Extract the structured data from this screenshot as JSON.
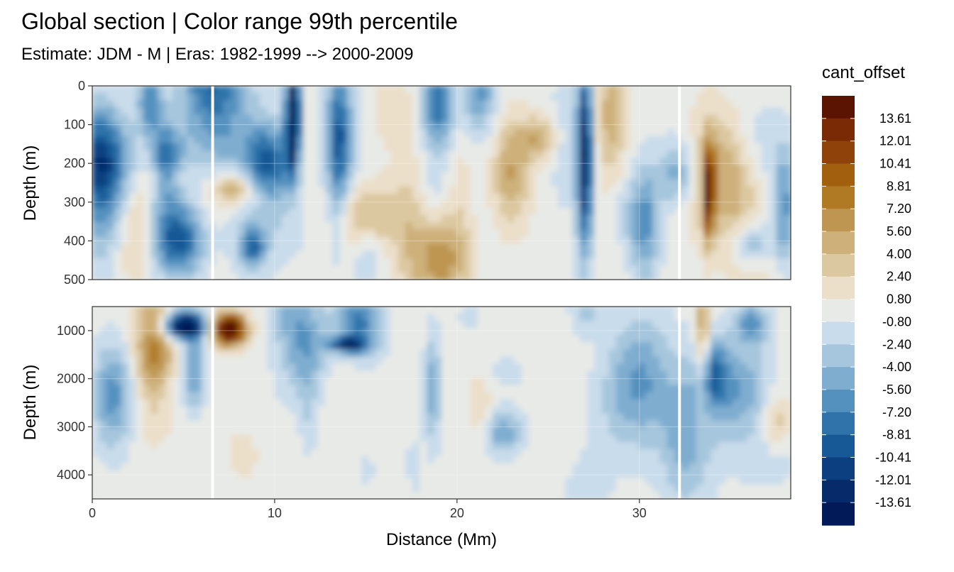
{
  "chart_data": {
    "type": "heatmap",
    "title": "Global section | Color range 99th percentile",
    "subtitle": "Estimate: JDM - M | Eras: 1982-1999 --> 2000-2009",
    "xlabel": "Distance (Mm)",
    "ylabel": "Depth (m)",
    "xlim": [
      0,
      38.3
    ],
    "x_ticks": [
      0,
      10,
      20,
      30
    ],
    "x_tick_labels": [
      "0",
      "10",
      "20",
      "30"
    ],
    "panels": [
      {
        "name": "upper",
        "ylim": [
          500,
          0
        ],
        "y_ticks": [
          0,
          100,
          200,
          300,
          400,
          500
        ],
        "y_tick_labels": [
          "0",
          "100",
          "200",
          "300",
          "400",
          "500"
        ],
        "section_breaks_x": [
          6.6,
          32.2
        ]
      },
      {
        "name": "lower",
        "ylim": [
          4500,
          500
        ],
        "y_ticks": [
          1000,
          2000,
          3000,
          4000
        ],
        "y_tick_labels": [
          "1000",
          "2000",
          "3000",
          "4000"
        ],
        "section_breaks_x": [
          6.6,
          32.2
        ]
      }
    ],
    "legend": {
      "title": "cant_offset",
      "placement": "right",
      "labels": [
        "13.61",
        "12.01",
        "10.41",
        "8.81",
        "7.20",
        "5.60",
        "4.00",
        "2.40",
        "0.80",
        "-0.80",
        "-2.40",
        "-4.00",
        "-5.60",
        "-7.20",
        "-8.81",
        "-10.41",
        "-12.01",
        "-13.61"
      ],
      "colors": [
        "#5c1402",
        "#7a2b06",
        "#8f4209",
        "#a25f0d",
        "#b07924",
        "#be9551",
        "#cdb07a",
        "#dcc8a0",
        "#ebdfca",
        "#e8eae7",
        "#c9dceb",
        "#a6c6dd",
        "#7fadd0",
        "#5591bf",
        "#2f73aa",
        "#165996",
        "#0b3f80",
        "#062a6a",
        "#021a58"
      ]
    },
    "grid": true
  }
}
